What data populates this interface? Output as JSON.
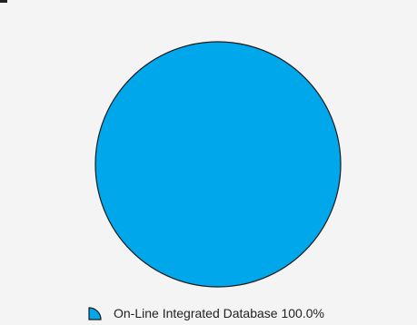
{
  "chart_data": {
    "type": "pie",
    "title": "",
    "slices": [
      {
        "label": "On-Line Integrated Database",
        "value": 100.0,
        "percent_label": "100.0%",
        "color": "#00a7ea"
      }
    ],
    "legend": {
      "placement": "bottom",
      "entries": [
        {
          "text": "On-Line Integrated Database 100.0%"
        }
      ]
    }
  }
}
